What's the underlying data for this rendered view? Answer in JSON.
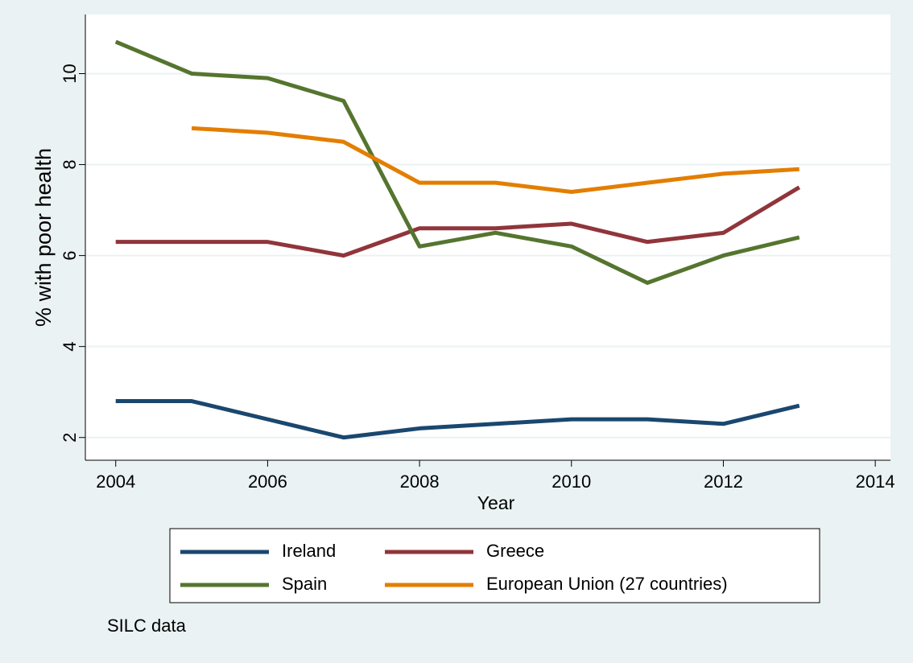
{
  "chart_data": {
    "type": "line",
    "y_label": "% with poor health",
    "x_label": "Year",
    "note": "SILC data",
    "x": [
      2004,
      2005,
      2006,
      2007,
      2008,
      2009,
      2010,
      2011,
      2012,
      2013
    ],
    "series": [
      {
        "name": "Ireland",
        "color": "#1a476f",
        "values": [
          2.8,
          2.8,
          2.4,
          2.0,
          2.2,
          2.3,
          2.4,
          2.4,
          2.3,
          2.7
        ]
      },
      {
        "name": "Greece",
        "color": "#90353b",
        "values": [
          6.3,
          6.3,
          6.3,
          6.0,
          6.6,
          6.6,
          6.7,
          6.3,
          6.5,
          7.5
        ]
      },
      {
        "name": "Spain",
        "color": "#55752f",
        "values": [
          10.7,
          10.0,
          9.9,
          9.4,
          6.2,
          6.5,
          6.2,
          5.4,
          6.0,
          6.4
        ]
      },
      {
        "name": "European Union (27 countries)",
        "color": "#e37e00",
        "values": [
          null,
          8.8,
          8.7,
          8.5,
          7.6,
          7.6,
          7.4,
          7.6,
          7.8,
          7.9
        ]
      }
    ],
    "xlim": [
      2003.6,
      2014.2
    ],
    "xticks": [
      2004,
      2006,
      2008,
      2010,
      2012,
      2014
    ],
    "ylim": [
      1.5,
      11.3
    ],
    "yticks": [
      2,
      4,
      6,
      8,
      10
    ],
    "grid": true
  }
}
